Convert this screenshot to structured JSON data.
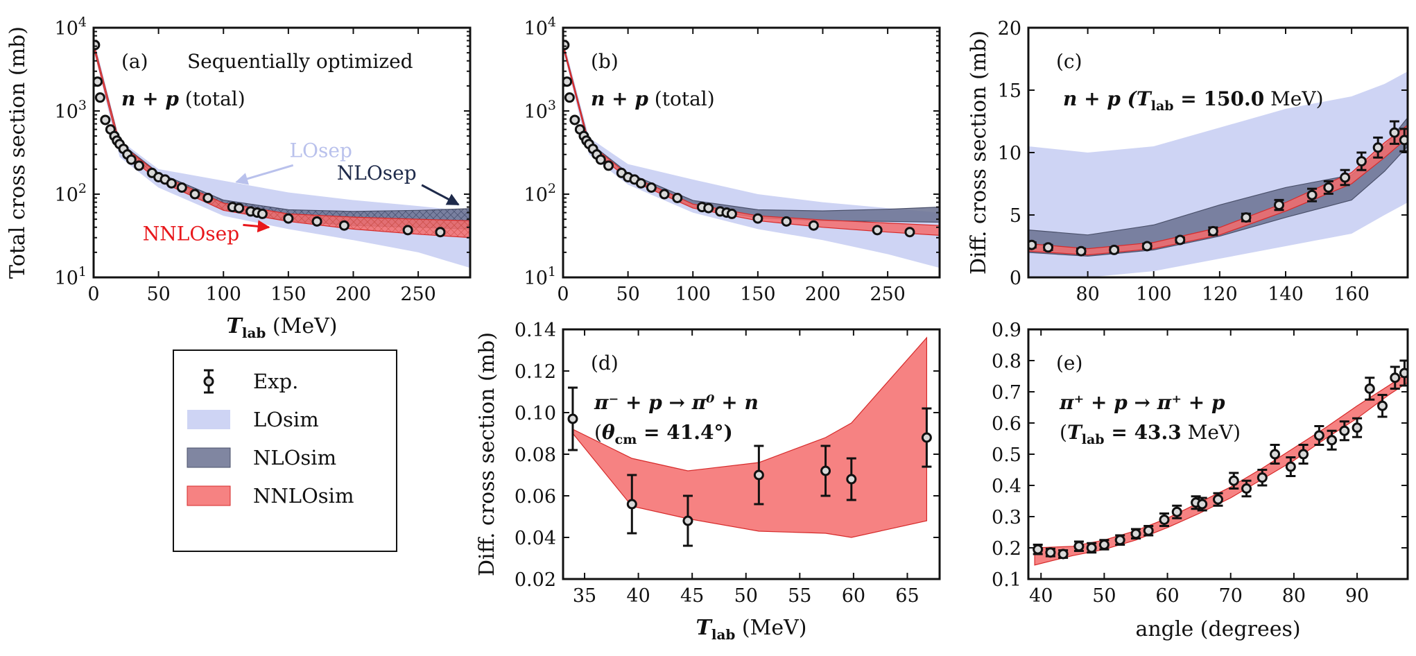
{
  "figure_title": "Sequentially optimized",
  "colors": {
    "LO": "#c5ccf2",
    "NLO": "#6a7190",
    "NNLO": "#f56c6c",
    "NNLO_edge": "#d62a2a",
    "exp": "#111111"
  },
  "legend": {
    "items": [
      {
        "label": "Exp.",
        "kind": "marker"
      },
      {
        "label": "LOsim",
        "kind": "LO"
      },
      {
        "label": "NLOsim",
        "kind": "NLO"
      },
      {
        "label": "NNLOsim",
        "kind": "NNLO"
      }
    ]
  },
  "chart_data": [
    {
      "id": "a",
      "panel_label": "(a)",
      "type": "line",
      "subtitle": "Sequentially optimized",
      "annotation": "n + p (total)",
      "xlabel": "T_lab (MeV)",
      "ylabel": "Total cross section (mb)",
      "xlim": [
        0,
        290
      ],
      "ylim": [
        10,
        10000
      ],
      "yscale": "log",
      "xticks": [
        0,
        50,
        100,
        150,
        200,
        250
      ],
      "yticks": [
        {
          "v": 10,
          "l": "10^1"
        },
        {
          "v": 100,
          "l": "10^2"
        },
        {
          "v": 1000,
          "l": "10^3"
        },
        {
          "v": 10000,
          "l": "10^4"
        }
      ],
      "band_labels": [
        {
          "text": "LOsep",
          "color": "#b9c1ec",
          "lx": 175,
          "ly": 280,
          "ax": 110,
          "ay": 140
        },
        {
          "text": "NLOsep",
          "color": "#1e2a4a",
          "lx": 218,
          "ly": 150,
          "ax": 281,
          "ay": 75
        },
        {
          "text": "NNLOsep",
          "color": "#e8171b",
          "lx": 75,
          "ly": 28,
          "ax": 135,
          "ay": 40
        }
      ],
      "exp": {
        "x": [
          1,
          3,
          5,
          9,
          13,
          16,
          18,
          20,
          23,
          26,
          29,
          35,
          45,
          50,
          55,
          60,
          68,
          78,
          88,
          107,
          112,
          121,
          126,
          130,
          150,
          172,
          193,
          242,
          267
        ],
        "y": [
          6200,
          2250,
          1450,
          780,
          600,
          500,
          440,
          400,
          350,
          300,
          260,
          220,
          180,
          160,
          150,
          135,
          120,
          100,
          90,
          70,
          68,
          62,
          60,
          58,
          51,
          47,
          42,
          37,
          35
        ]
      },
      "bands": [
        {
          "name": "LOsep",
          "x": [
            0,
            20,
            50,
            100,
            150,
            200,
            250,
            290
          ],
          "lo": [
            5500,
            280,
            120,
            55,
            38,
            28,
            20,
            13
          ],
          "hi": [
            7500,
            450,
            200,
            145,
            105,
            85,
            72,
            62
          ]
        },
        {
          "name": "NLOsep",
          "x": [
            0,
            20,
            50,
            100,
            150,
            200,
            250,
            290
          ],
          "lo": [
            5800,
            360,
            150,
            66,
            48,
            42,
            40,
            38
          ],
          "hi": [
            6600,
            420,
            180,
            85,
            65,
            62,
            64,
            67
          ]
        },
        {
          "name": "NNLOsep",
          "x": [
            0,
            20,
            50,
            100,
            150,
            200,
            250,
            290
          ],
          "lo": [
            5800,
            350,
            145,
            64,
            47,
            38,
            33,
            30
          ],
          "hi": [
            6600,
            410,
            175,
            78,
            58,
            53,
            50,
            48
          ]
        }
      ]
    },
    {
      "id": "b",
      "panel_label": "(b)",
      "type": "line",
      "annotation": "n + p (total)",
      "xlabel": "",
      "ylabel": "",
      "xlim": [
        0,
        290
      ],
      "ylim": [
        10,
        10000
      ],
      "yscale": "log",
      "xticks": [
        0,
        50,
        100,
        150,
        200,
        250
      ],
      "yticks": [
        {
          "v": 10,
          "l": "10^1"
        },
        {
          "v": 100,
          "l": "10^2"
        },
        {
          "v": 1000,
          "l": "10^3"
        },
        {
          "v": 10000,
          "l": "10^4"
        }
      ],
      "exp": {
        "x": [
          1,
          3,
          5,
          9,
          13,
          16,
          18,
          20,
          23,
          26,
          29,
          35,
          45,
          50,
          55,
          60,
          68,
          78,
          88,
          107,
          112,
          121,
          126,
          130,
          150,
          172,
          193,
          242,
          267
        ],
        "y": [
          6200,
          2250,
          1450,
          780,
          600,
          500,
          440,
          400,
          350,
          300,
          260,
          220,
          180,
          160,
          150,
          135,
          120,
          100,
          90,
          70,
          68,
          62,
          60,
          58,
          51,
          47,
          42,
          37,
          35
        ]
      },
      "bands": [
        {
          "name": "LOsim",
          "x": [
            0,
            20,
            50,
            100,
            150,
            200,
            250,
            290
          ],
          "lo": [
            5500,
            300,
            130,
            60,
            38,
            28,
            19,
            13
          ],
          "hi": [
            7200,
            480,
            230,
            150,
            100,
            80,
            68,
            60
          ]
        },
        {
          "name": "NLOsim",
          "x": [
            0,
            20,
            50,
            100,
            150,
            200,
            250,
            290
          ],
          "lo": [
            5900,
            370,
            155,
            70,
            52,
            48,
            47,
            46
          ],
          "hi": [
            6500,
            420,
            180,
            84,
            65,
            63,
            66,
            70
          ]
        },
        {
          "name": "NNLOsim",
          "x": [
            0,
            20,
            50,
            100,
            150,
            200,
            250,
            290
          ],
          "lo": [
            5900,
            370,
            152,
            68,
            48,
            40,
            35,
            32
          ],
          "hi": [
            6500,
            410,
            172,
            76,
            55,
            49,
            45,
            42
          ]
        }
      ]
    },
    {
      "id": "c",
      "panel_label": "(c)",
      "type": "line",
      "annotation": "n + p (T_lab = 150.0 MeV)",
      "xlabel": "",
      "ylabel": "Diff. cross section (mb)",
      "xlim": [
        62,
        177
      ],
      "ylim": [
        0,
        20
      ],
      "xticks": [
        80,
        100,
        120,
        140,
        160
      ],
      "yticks": [
        {
          "v": 0,
          "l": "0"
        },
        {
          "v": 5,
          "l": "5"
        },
        {
          "v": 10,
          "l": "10"
        },
        {
          "v": 15,
          "l": "15"
        },
        {
          "v": 20,
          "l": "20"
        }
      ],
      "exp": {
        "x": [
          63,
          68,
          78,
          88,
          98,
          108,
          118,
          128,
          138,
          148,
          153,
          158,
          163,
          168,
          173,
          176
        ],
        "y": [
          2.6,
          2.4,
          2.1,
          2.2,
          2.5,
          3.0,
          3.7,
          4.8,
          5.8,
          6.6,
          7.2,
          8.0,
          9.3,
          10.4,
          11.6,
          11.0
        ],
        "err": [
          0.2,
          0.2,
          0.2,
          0.2,
          0.2,
          0.2,
          0.3,
          0.3,
          0.4,
          0.5,
          0.5,
          0.6,
          0.7,
          0.8,
          0.9,
          0.9
        ]
      },
      "bands": [
        {
          "name": "LOsim",
          "x": [
            62,
            80,
            100,
            120,
            140,
            160,
            170,
            177
          ],
          "lo": [
            0,
            0,
            0.5,
            1.5,
            2.5,
            3.5,
            5,
            6
          ],
          "hi": [
            10.5,
            10,
            10.5,
            12,
            13.5,
            14.5,
            15.5,
            16.5
          ]
        },
        {
          "name": "NLOsim",
          "x": [
            62,
            80,
            100,
            120,
            140,
            160,
            170,
            177
          ],
          "lo": [
            2,
            1.7,
            2.2,
            3.3,
            4.8,
            6.2,
            8.5,
            10.5
          ],
          "hi": [
            3.8,
            3.4,
            4.2,
            5.8,
            7.2,
            8.2,
            10.5,
            12.8
          ]
        },
        {
          "name": "NNLOsim",
          "x": [
            62,
            80,
            100,
            120,
            140,
            160,
            170,
            177
          ],
          "lo": [
            2.1,
            1.8,
            2.3,
            3.4,
            5.3,
            7.5,
            9.6,
            11.2
          ],
          "hi": [
            2.7,
            2.3,
            2.8,
            4.0,
            6.0,
            8.4,
            10.8,
            12.2
          ]
        }
      ]
    },
    {
      "id": "d",
      "panel_label": "(d)",
      "type": "line",
      "annotation": "π⁻ + p → π⁰ + n",
      "annotation2": "(θ_cm = 41.4°)",
      "xlabel": "T_lab (MeV)",
      "ylabel": "Diff. cross section (mb)",
      "xlim": [
        33,
        68
      ],
      "ylim": [
        0.02,
        0.14
      ],
      "xticks": [
        35,
        40,
        45,
        50,
        55,
        60,
        65
      ],
      "yticks": [
        {
          "v": 0.02,
          "l": "0.02"
        },
        {
          "v": 0.04,
          "l": "0.04"
        },
        {
          "v": 0.06,
          "l": "0.06"
        },
        {
          "v": 0.08,
          "l": "0.08"
        },
        {
          "v": 0.1,
          "l": "0.10"
        },
        {
          "v": 0.12,
          "l": "0.12"
        },
        {
          "v": 0.14,
          "l": "0.14"
        }
      ],
      "exp": {
        "x": [
          33.9,
          39.4,
          44.6,
          51.2,
          57.4,
          59.8,
          66.8
        ],
        "y": [
          0.097,
          0.056,
          0.048,
          0.07,
          0.072,
          0.068,
          0.088
        ],
        "err": [
          0.015,
          0.014,
          0.012,
          0.014,
          0.012,
          0.01,
          0.014
        ]
      },
      "bands": [
        {
          "name": "NNLOsim",
          "x": [
            33.9,
            39.4,
            44.6,
            51.2,
            57.4,
            59.8,
            66.8
          ],
          "lo": [
            0.09,
            0.055,
            0.049,
            0.043,
            0.042,
            0.04,
            0.048
          ],
          "hi": [
            0.092,
            0.078,
            0.072,
            0.076,
            0.088,
            0.095,
            0.136
          ]
        }
      ]
    },
    {
      "id": "e",
      "panel_label": "(e)",
      "type": "line",
      "annotation": "π⁺ + p → π⁺ + p",
      "annotation2": "(T_lab = 43.3 MeV)",
      "xlabel": "angle (degrees)",
      "ylabel": "",
      "xlim": [
        38,
        98
      ],
      "ylim": [
        0.1,
        0.9
      ],
      "xticks": [
        40,
        50,
        60,
        70,
        80,
        90
      ],
      "yticks": [
        {
          "v": 0.1,
          "l": "0.1"
        },
        {
          "v": 0.2,
          "l": "0.2"
        },
        {
          "v": 0.3,
          "l": "0.3"
        },
        {
          "v": 0.4,
          "l": "0.4"
        },
        {
          "v": 0.5,
          "l": "0.5"
        },
        {
          "v": 0.6,
          "l": "0.6"
        },
        {
          "v": 0.7,
          "l": "0.7"
        },
        {
          "v": 0.8,
          "l": "0.8"
        },
        {
          "v": 0.9,
          "l": "0.9"
        }
      ],
      "exp": {
        "x": [
          39.5,
          41.5,
          43.5,
          46,
          48,
          50,
          52.5,
          55,
          57,
          59.5,
          61.5,
          64.5,
          65.5,
          68,
          70.5,
          72.5,
          75,
          77,
          79.5,
          81.5,
          84,
          86,
          88,
          90,
          92,
          94,
          96,
          97.5
        ],
        "y": [
          0.195,
          0.185,
          0.18,
          0.205,
          0.2,
          0.21,
          0.225,
          0.245,
          0.255,
          0.29,
          0.315,
          0.345,
          0.34,
          0.355,
          0.415,
          0.39,
          0.425,
          0.5,
          0.46,
          0.5,
          0.56,
          0.545,
          0.575,
          0.585,
          0.71,
          0.655,
          0.745,
          0.76
        ],
        "err": [
          0.015,
          0.012,
          0.012,
          0.015,
          0.015,
          0.015,
          0.015,
          0.015,
          0.015,
          0.02,
          0.02,
          0.02,
          0.02,
          0.02,
          0.025,
          0.025,
          0.025,
          0.03,
          0.03,
          0.03,
          0.03,
          0.03,
          0.03,
          0.03,
          0.035,
          0.035,
          0.035,
          0.04
        ]
      },
      "bands": [
        {
          "name": "NNLOsim",
          "x": [
            39,
            45,
            50,
            55,
            60,
            65,
            70,
            75,
            80,
            85,
            90,
            95,
            98
          ],
          "lo": [
            0.145,
            0.175,
            0.195,
            0.225,
            0.265,
            0.31,
            0.36,
            0.42,
            0.48,
            0.55,
            0.615,
            0.69,
            0.73
          ],
          "hi": [
            0.2,
            0.205,
            0.225,
            0.255,
            0.295,
            0.345,
            0.395,
            0.455,
            0.52,
            0.585,
            0.655,
            0.72,
            0.76
          ]
        }
      ]
    }
  ]
}
